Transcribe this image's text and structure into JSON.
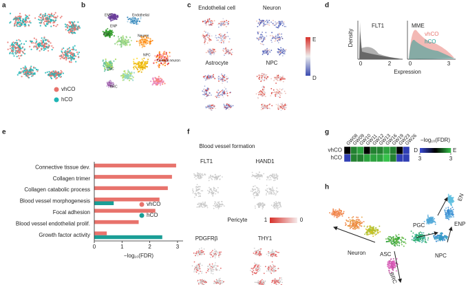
{
  "panel_labels": [
    "a",
    "b",
    "c",
    "d",
    "e",
    "f",
    "g",
    "h"
  ],
  "panel_a": {
    "legend": [
      {
        "name": "vhCO",
        "color": "#e8736c"
      },
      {
        "name": "hCO",
        "color": "#1fb5b5"
      }
    ]
  },
  "panel_b": {
    "cluster_labels": [
      "EMT",
      "Endothelial",
      "ENP",
      "PGC",
      "Neuron",
      "Cortical neuron",
      "NPC",
      "CSC",
      "BRC"
    ]
  },
  "panel_c": {
    "titles": [
      "Endothelial cell",
      "Neuron",
      "Astrocyte",
      "NPC"
    ],
    "colorbar": [
      "E",
      "D"
    ]
  },
  "panel_d": {
    "y_label": "Density",
    "x_label": "Expression",
    "plots": [
      {
        "title": "FLT1",
        "xticks": [
          "0",
          "2"
        ]
      },
      {
        "title": "MME",
        "xticks": [
          "0",
          "3"
        ]
      }
    ],
    "legend": [
      {
        "name": "vhCO",
        "color": "#e8736c"
      },
      {
        "name": "hCO",
        "color": "#1a9e96"
      }
    ]
  },
  "chart_data": [
    {
      "type": "bar",
      "orientation": "horizontal",
      "x_label": "−log₁₀(FDR)",
      "categories": [
        "Connective tissue dev.",
        "Collagen trimer",
        "Collagen catabolic process",
        "Blood vessel morphogenesis",
        "Focal adhesion",
        "Blood vessel endothelial prolif.",
        "Growth factor activity"
      ],
      "series": [
        {
          "name": "vhCO",
          "color": "#e8736c",
          "values": [
            2.95,
            2.8,
            2.65,
            2.35,
            2.2,
            1.6,
            0.45
          ]
        },
        {
          "name": "hCO",
          "color": "#1a9e96",
          "values": [
            null,
            null,
            null,
            0.7,
            null,
            null,
            2.45
          ]
        }
      ],
      "xlim": [
        0,
        3.2
      ],
      "xticks": [
        0,
        1,
        2,
        3
      ]
    },
    {
      "type": "heatmap",
      "title": "−log₁₀(FDR)",
      "columns": [
        "GW08",
        "GW09",
        "GW10",
        "GW11",
        "GW12",
        "GW13",
        "GW16",
        "GW19",
        "GW23",
        "GW26"
      ],
      "rows": [
        "vhCO",
        "hCO"
      ],
      "values": [
        [
          0,
          2,
          2.5,
          0,
          2,
          2,
          2.5,
          2,
          0,
          -2.5
        ],
        [
          -2.5,
          2,
          2,
          2.5,
          2.5,
          2.5,
          3,
          2,
          -2.5,
          -2.5
        ]
      ],
      "zlim": [
        -3,
        3
      ],
      "colors": [
        "#3a4bd8",
        "#000000",
        "#35c24a"
      ],
      "colorbar_ends": [
        "D",
        "E"
      ],
      "colorbar_ticks": [
        {
          "value": -3,
          "label": "3"
        },
        {
          "value": 3,
          "label": "3"
        }
      ]
    }
  ],
  "panel_f": {
    "title": "Blood vessel formation",
    "genes": [
      "FLT1",
      "HAND1",
      "PDGFRβ",
      "THY1"
    ],
    "subtitle": "Pericyte",
    "colorbar": [
      "1",
      "0"
    ]
  },
  "panel_h": {
    "labels": [
      "Neuron",
      "ASC",
      "BRC",
      "NPC",
      "PGC",
      "ENP",
      "EN"
    ]
  }
}
